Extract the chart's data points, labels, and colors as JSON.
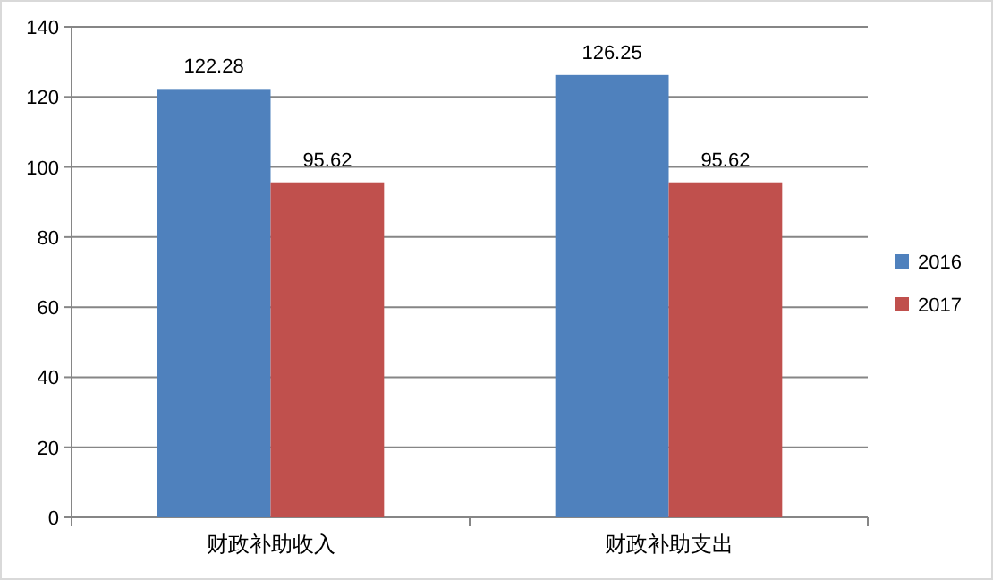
{
  "chart_data": {
    "type": "bar",
    "categories": [
      "财政补助收入",
      "财政补助支出"
    ],
    "series": [
      {
        "name": "2016",
        "color": "#4f81bd",
        "values": [
          122.28,
          126.25
        ]
      },
      {
        "name": "2017",
        "color": "#c0504d",
        "values": [
          95.62,
          95.62
        ]
      }
    ],
    "ylim": [
      0,
      140
    ],
    "yticks": [
      0,
      20,
      40,
      60,
      80,
      100,
      120,
      140
    ],
    "grid": "y",
    "data_labels": true,
    "legend": "right"
  }
}
